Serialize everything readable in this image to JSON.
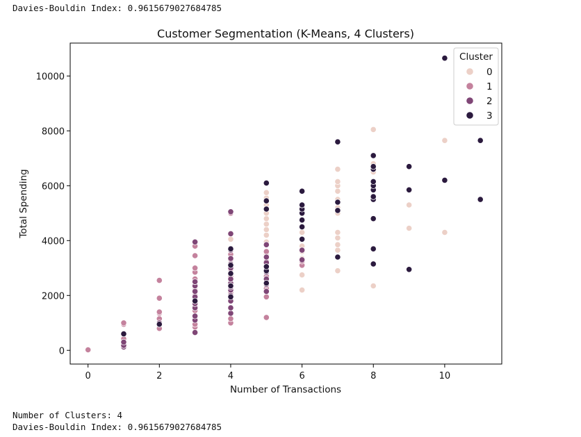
{
  "console": {
    "top_line": "Davies-Bouldin Index: 0.9615679027684785",
    "bottom_line_1": "Number of Clusters: 4",
    "bottom_line_2": "Davies-Bouldin Index: 0.9615679027684785"
  },
  "chart_data": {
    "type": "scatter",
    "title": "Customer Segmentation (K-Means, 4 Clusters)",
    "xlabel": "Number of Transactions",
    "ylabel": "Total Spending",
    "xlim": [
      -0.5,
      11.6
    ],
    "ylim": [
      -500,
      11200
    ],
    "xticks": [
      "0",
      "2",
      "4",
      "6",
      "8",
      "10"
    ],
    "yticks": [
      "0",
      "2000",
      "4000",
      "6000",
      "8000",
      "10000"
    ],
    "grid": false,
    "legend": {
      "title": "Cluster",
      "placement": "top-right"
    },
    "series": [
      {
        "name": "0",
        "color": "#ecd0c7",
        "points": [
          [
            4,
            4050
          ],
          [
            5,
            3150
          ],
          [
            5,
            3500
          ],
          [
            5,
            3950
          ],
          [
            5,
            4200
          ],
          [
            5,
            4400
          ],
          [
            5,
            4600
          ],
          [
            5,
            4800
          ],
          [
            5,
            5000
          ],
          [
            5,
            5300
          ],
          [
            5,
            5550
          ],
          [
            5,
            5750
          ],
          [
            6,
            2200
          ],
          [
            6,
            2750
          ],
          [
            6,
            3150
          ],
          [
            6,
            3350
          ],
          [
            6,
            3600
          ],
          [
            6,
            3800
          ],
          [
            6,
            4050
          ],
          [
            6,
            4300
          ],
          [
            7,
            2900
          ],
          [
            7,
            3650
          ],
          [
            7,
            3850
          ],
          [
            7,
            4100
          ],
          [
            7,
            4300
          ],
          [
            7,
            5000
          ],
          [
            7,
            5200
          ],
          [
            7,
            5500
          ],
          [
            7,
            5800
          ],
          [
            7,
            6000
          ],
          [
            7,
            6150
          ],
          [
            7,
            6600
          ],
          [
            8,
            2350
          ],
          [
            8,
            6150
          ],
          [
            8,
            6500
          ],
          [
            8,
            6800
          ],
          [
            8,
            8050
          ],
          [
            9,
            4450
          ],
          [
            9,
            5300
          ],
          [
            10,
            4300
          ],
          [
            10,
            7650
          ]
        ]
      },
      {
        "name": "1",
        "color": "#c4829d",
        "points": [
          [
            0,
            20
          ],
          [
            1,
            250
          ],
          [
            1,
            420
          ],
          [
            1,
            950
          ],
          [
            1,
            1000
          ],
          [
            2,
            800
          ],
          [
            2,
            950
          ],
          [
            2,
            1150
          ],
          [
            2,
            1350
          ],
          [
            2,
            1400
          ],
          [
            2,
            1900
          ],
          [
            2,
            2550
          ],
          [
            3,
            850
          ],
          [
            3,
            950
          ],
          [
            3,
            1450
          ],
          [
            3,
            1650
          ],
          [
            3,
            2000
          ],
          [
            3,
            2200
          ],
          [
            3,
            2600
          ],
          [
            3,
            2850
          ],
          [
            3,
            3000
          ],
          [
            3,
            3450
          ],
          [
            3,
            3800
          ],
          [
            4,
            1000
          ],
          [
            4,
            1150
          ],
          [
            4,
            2100
          ],
          [
            4,
            2450
          ],
          [
            4,
            2700
          ],
          [
            4,
            2950
          ],
          [
            4,
            3100
          ],
          [
            4,
            3300
          ],
          [
            4,
            3500
          ],
          [
            4,
            5000
          ],
          [
            5,
            1200
          ],
          [
            5,
            1950
          ],
          [
            5,
            2250
          ],
          [
            5,
            2700
          ],
          [
            5,
            3000
          ],
          [
            5,
            3100
          ],
          [
            5,
            3250
          ],
          [
            5,
            3600
          ],
          [
            6,
            3100
          ],
          [
            6,
            3250
          ]
        ]
      },
      {
        "name": "2",
        "color": "#7f4676",
        "points": [
          [
            1,
            120
          ],
          [
            1,
            180
          ],
          [
            1,
            300
          ],
          [
            2,
            1000
          ],
          [
            3,
            650
          ],
          [
            3,
            1100
          ],
          [
            3,
            1250
          ],
          [
            3,
            1550
          ],
          [
            3,
            1700
          ],
          [
            3,
            1950
          ],
          [
            3,
            2150
          ],
          [
            3,
            2350
          ],
          [
            3,
            2500
          ],
          [
            3,
            3950
          ],
          [
            4,
            1350
          ],
          [
            4,
            1550
          ],
          [
            4,
            1800
          ],
          [
            4,
            2000
          ],
          [
            4,
            2200
          ],
          [
            4,
            2300
          ],
          [
            4,
            2450
          ],
          [
            4,
            2600
          ],
          [
            4,
            2800
          ],
          [
            4,
            3000
          ],
          [
            4,
            3150
          ],
          [
            4,
            3350
          ],
          [
            4,
            3650
          ],
          [
            4,
            4250
          ],
          [
            4,
            5050
          ],
          [
            5,
            2150
          ],
          [
            5,
            2400
          ],
          [
            5,
            2600
          ],
          [
            5,
            2850
          ],
          [
            5,
            3200
          ],
          [
            5,
            3400
          ],
          [
            5,
            3850
          ],
          [
            6,
            3300
          ],
          [
            6,
            3650
          ]
        ]
      },
      {
        "name": "3",
        "color": "#2b1a3e",
        "points": [
          [
            1,
            600
          ],
          [
            2,
            950
          ],
          [
            3,
            1800
          ],
          [
            4,
            1950
          ],
          [
            4,
            2350
          ],
          [
            4,
            2800
          ],
          [
            4,
            3100
          ],
          [
            4,
            3700
          ],
          [
            5,
            2450
          ],
          [
            5,
            2900
          ],
          [
            5,
            3050
          ],
          [
            5,
            5150
          ],
          [
            5,
            5450
          ],
          [
            5,
            6100
          ],
          [
            6,
            4050
          ],
          [
            6,
            4500
          ],
          [
            6,
            4750
          ],
          [
            6,
            5000
          ],
          [
            6,
            5150
          ],
          [
            6,
            5300
          ],
          [
            6,
            5800
          ],
          [
            7,
            3400
          ],
          [
            7,
            5100
          ],
          [
            7,
            5400
          ],
          [
            7,
            7600
          ],
          [
            8,
            3150
          ],
          [
            8,
            3700
          ],
          [
            8,
            4800
          ],
          [
            8,
            5500
          ],
          [
            8,
            5600
          ],
          [
            8,
            5850
          ],
          [
            8,
            6000
          ],
          [
            8,
            6150
          ],
          [
            8,
            6600
          ],
          [
            8,
            6700
          ],
          [
            8,
            7100
          ],
          [
            9,
            2950
          ],
          [
            9,
            5850
          ],
          [
            9,
            6700
          ],
          [
            10,
            6200
          ],
          [
            10,
            10650
          ],
          [
            11,
            5500
          ],
          [
            11,
            7650
          ]
        ]
      }
    ]
  }
}
